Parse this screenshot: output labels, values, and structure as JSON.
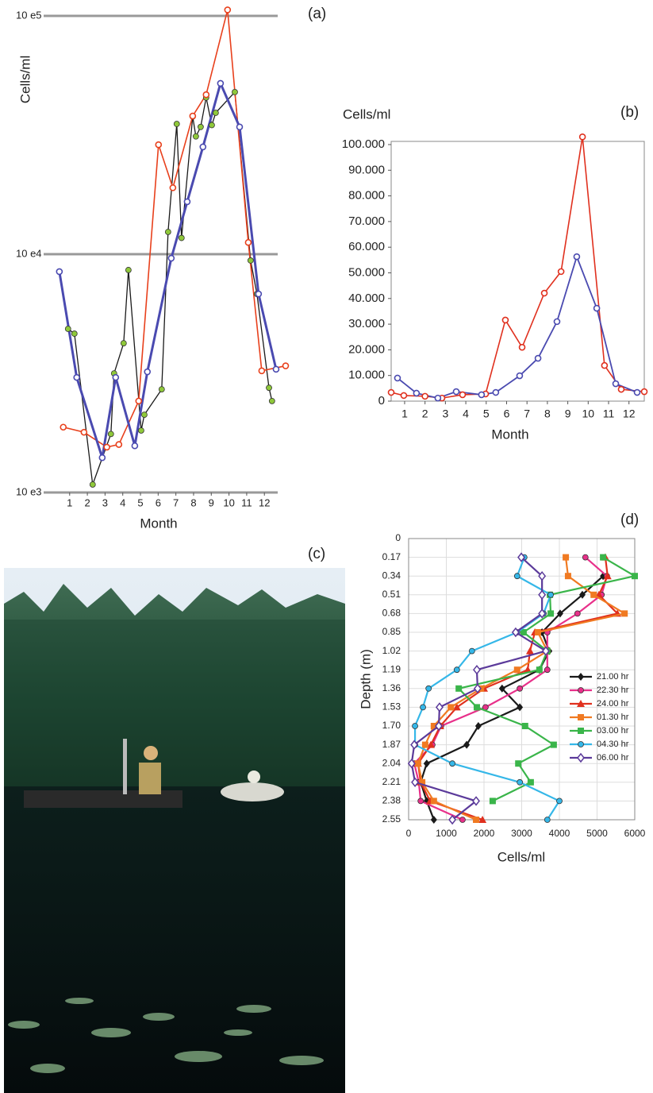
{
  "chart_data": [
    {
      "type": "line",
      "panel": "(a)",
      "y_label": "Cells/ml",
      "x_label": "Month",
      "log_y": true,
      "xlim": [
        -0.2,
        13.2
      ],
      "xticks": [
        1,
        2,
        3,
        4,
        5,
        6,
        7,
        8,
        9,
        10,
        11,
        12
      ],
      "ylim": [
        1000,
        100000
      ],
      "yticks": [
        {
          "value": 1000,
          "label": "10 e3"
        },
        {
          "value": 10000,
          "label": "10 e4"
        },
        {
          "value": 100000,
          "label": "10 e5"
        }
      ],
      "grid": true,
      "series": [
        {
          "color": "#1a1a1a",
          "marker": "circle",
          "marker_color": "#8fc83a",
          "width": 1.3,
          "x": [
            0.91,
            1.27,
            2.3,
            3.33,
            3.51,
            4.05,
            4.32,
            5.04,
            5.22,
            6.2,
            6.56,
            7.05,
            7.32,
            7.95,
            8.13,
            8.4,
            8.71,
            9.03,
            9.25,
            10.33,
            11.22,
            11.58,
            12.26,
            12.43
          ],
          "values": [
            4860,
            4640,
            1080,
            1760,
            3160,
            4230,
            8580,
            1820,
            2120,
            2710,
            12400,
            35200,
            11700,
            37800,
            31200,
            34200,
            45400,
            34800,
            39200,
            47900,
            9410,
            6810,
            2750,
            2420
          ]
        },
        {
          "color": "#e8401c",
          "marker": "open-circle",
          "marker_color": "#e8401c",
          "width": 1.6,
          "x": [
            0.64,
            1.81,
            3.1,
            3.78,
            4.9,
            6.02,
            6.83,
            7.95,
            8.71,
            9.92,
            11.09,
            11.85,
            13.2
          ],
          "values": [
            1880,
            1790,
            1550,
            1590,
            2420,
            28800,
            19000,
            38000,
            46700,
            106000,
            11200,
            3240,
            3400
          ]
        },
        {
          "color": "#4a4ab0",
          "marker": "open-circle",
          "marker_color": "#4a4ab0",
          "width": 3,
          "x": [
            0.42,
            1.4,
            2.84,
            3.6,
            4.68,
            5.39,
            6.74,
            7.64,
            8.53,
            9.52,
            10.6,
            11.67,
            12.66
          ],
          "values": [
            8450,
            3040,
            1400,
            3040,
            1570,
            3210,
            9620,
            16600,
            28200,
            52100,
            34200,
            6810,
            3290
          ]
        }
      ]
    },
    {
      "type": "line",
      "panel": "(b)",
      "y_label": "Cells/ml",
      "x_label": "Month",
      "log_y": false,
      "xlim": [
        0.34,
        12.75
      ],
      "xticks": [
        1,
        2,
        3,
        4,
        5,
        6,
        7,
        8,
        9,
        10,
        11,
        12
      ],
      "ylim": [
        0,
        100000
      ],
      "yticks": [
        0,
        {
          "value": 10000,
          "label": "10.000"
        },
        {
          "value": 20000,
          "label": "20.000"
        },
        {
          "value": 30000,
          "label": "30.000"
        },
        {
          "value": 40000,
          "label": "40.000"
        },
        {
          "value": 50000,
          "label": "50.000"
        },
        {
          "value": 60000,
          "label": "60.000"
        },
        {
          "value": 70000,
          "label": "70.000"
        },
        {
          "value": 80000,
          "label": "80.000"
        },
        {
          "value": 90000,
          "label": "90.000"
        },
        {
          "value": 100000,
          "label": "100.000"
        }
      ],
      "grid": false,
      "series": [
        {
          "color": "#e0301e",
          "marker": "open-circle",
          "marker_color": "#e0301e",
          "width": 1.6,
          "x": [
            0.34,
            0.96,
            2,
            2.83,
            3.84,
            4.97,
            5.94,
            6.76,
            7.85,
            8.67,
            9.72,
            10.8,
            11.62,
            12.75
          ],
          "values": [
            3400,
            2200,
            1900,
            1200,
            2500,
            2800,
            31600,
            21000,
            42100,
            50500,
            103000,
            13900,
            4600,
            3700
          ]
        },
        {
          "color": "#4a4ab0",
          "marker": "open-circle",
          "marker_color": "#4a4ab0",
          "width": 1.8,
          "x": [
            0.65,
            1.58,
            2.63,
            3.53,
            4.77,
            5.47,
            6.64,
            7.54,
            8.47,
            9.44,
            10.42,
            11.35,
            12.4
          ],
          "values": [
            9000,
            3100,
            1200,
            3700,
            2500,
            3400,
            9900,
            16700,
            31000,
            56300,
            36200,
            6800,
            3400
          ]
        }
      ]
    },
    {
      "type": "profile",
      "panel": "(d)",
      "y_label": "Depth (m)",
      "x_label": "Cells/ml",
      "xlim": [
        0,
        6000
      ],
      "xticks": [
        0,
        1000,
        2000,
        3000,
        4000,
        5000,
        6000
      ],
      "ylim": [
        0,
        2.55
      ],
      "yticks": [
        0,
        0.17,
        0.34,
        0.51,
        0.68,
        0.85,
        1.02,
        1.19,
        1.36,
        1.53,
        {
          "value": 1.7,
          "label": "1.70"
        },
        1.87,
        2.04,
        2.21,
        2.38,
        2.55
      ],
      "grid": true,
      "y": [
        0.17,
        0.34,
        0.51,
        0.68,
        0.85,
        1.02,
        1.19,
        1.36,
        1.53,
        1.7,
        1.87,
        2.04,
        2.21,
        2.38,
        2.55
      ],
      "series": [
        {
          "name": "21.00 hr",
          "color": "#1a1a1a",
          "marker": "diamond",
          "values": [
            null,
            5160,
            4610,
            4020,
            3540,
            3730,
            3470,
            2480,
            2950,
            1850,
            1540,
            480,
            320,
            480,
            670
          ]
        },
        {
          "name": "22.30 hr",
          "color": "#e8308a",
          "marker": "circle",
          "values": [
            4690,
            5260,
            5120,
            4480,
            3680,
            3680,
            3680,
            2950,
            2040,
            860,
            630,
            150,
            270,
            320,
            1430
          ]
        },
        {
          "name": "24.00 hr",
          "color": "#e0301e",
          "marker": "triangle",
          "values": [
            5220,
            5280,
            5050,
            5540,
            3350,
            3220,
            3160,
            2000,
            1280,
            840,
            590,
            250,
            320,
            570,
            1960
          ]
        },
        {
          "name": "01.30 hr",
          "color": "#f07a22",
          "marker": "square",
          "values": [
            4170,
            4230,
            4910,
            5730,
            3430,
            3680,
            2880,
            1920,
            1120,
            670,
            440,
            250,
            360,
            670,
            1790
          ]
        },
        {
          "name": "03.00 hr",
          "color": "#3ab54a",
          "marker": "square",
          "values": [
            5160,
            6000,
            3750,
            3770,
            3050,
            3680,
            3470,
            1330,
            1810,
            3090,
            3850,
            2910,
            3240,
            2230,
            null
          ]
        },
        {
          "name": "04.30 hr",
          "color": "#35b7e8",
          "marker": "circle",
          "values": [
            3070,
            2880,
            3770,
            3580,
            2880,
            1680,
            1280,
            530,
            380,
            170,
            170,
            1160,
            2950,
            4000,
            3680
          ]
        },
        {
          "name": "06.00 hr",
          "color": "#5b3a9a",
          "marker": "open-diamond",
          "values": [
            2990,
            3540,
            3540,
            3540,
            2840,
            3640,
            1810,
            1830,
            820,
            800,
            150,
            80,
            170,
            1790,
            1160
          ]
        }
      ]
    }
  ],
  "photo": {
    "panel": "(c)"
  }
}
